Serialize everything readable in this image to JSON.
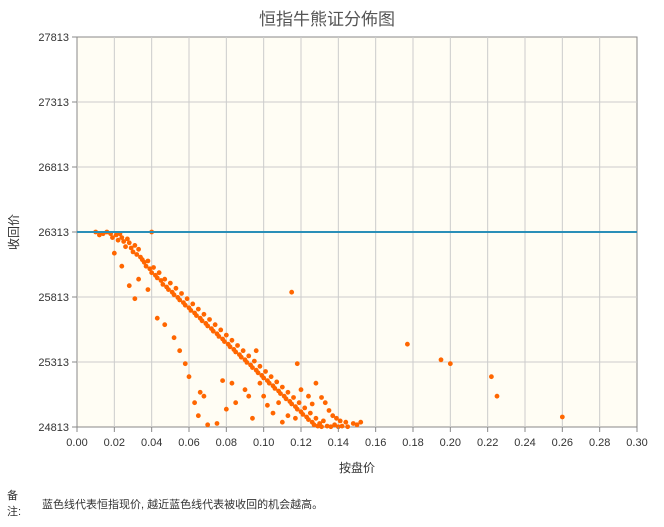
{
  "chart_data": {
    "type": "scatter",
    "title": "恒指牛熊证分佈图",
    "xlabel": "按盘价",
    "ylabel": "收回价",
    "xlim": [
      0,
      0.3
    ],
    "ylim": [
      24813,
      27813
    ],
    "xticks": [
      0,
      0.02,
      0.04,
      0.06,
      0.08,
      0.1,
      0.12,
      0.14,
      0.16,
      0.18,
      0.2,
      0.22,
      0.24,
      0.26,
      0.28,
      0.3
    ],
    "xtick_labels": [
      "0.00",
      "0.02",
      "0.04",
      "0.06",
      "0.08",
      "0.10",
      "0.12",
      "0.14",
      "0.16",
      "0.18",
      "0.20",
      "0.22",
      "0.24",
      "0.26",
      "0.28",
      "0.30"
    ],
    "yticks": [
      24813,
      25313,
      25813,
      26313,
      26813,
      27313,
      27813
    ],
    "ytick_labels": [
      "24813",
      "25313",
      "25813",
      "26313",
      "26813",
      "27313",
      "27813"
    ],
    "grid": true,
    "reference_line": {
      "y": 26313,
      "color": "#2a8fb8"
    },
    "point_color": "#ff6600",
    "points": [
      [
        0.01,
        26313
      ],
      [
        0.012,
        26290
      ],
      [
        0.014,
        26300
      ],
      [
        0.016,
        26313
      ],
      [
        0.018,
        26300
      ],
      [
        0.019,
        26270
      ],
      [
        0.021,
        26290
      ],
      [
        0.022,
        26250
      ],
      [
        0.023,
        26300
      ],
      [
        0.024,
        26270
      ],
      [
        0.025,
        26240
      ],
      [
        0.026,
        26200
      ],
      [
        0.027,
        26260
      ],
      [
        0.028,
        26230
      ],
      [
        0.029,
        26190
      ],
      [
        0.03,
        26160
      ],
      [
        0.031,
        26210
      ],
      [
        0.032,
        26140
      ],
      [
        0.033,
        26180
      ],
      [
        0.034,
        26120
      ],
      [
        0.035,
        26100
      ],
      [
        0.036,
        26080
      ],
      [
        0.037,
        26050
      ],
      [
        0.038,
        26090
      ],
      [
        0.039,
        26030
      ],
      [
        0.04,
        26313
      ],
      [
        0.04,
        26000
      ],
      [
        0.041,
        26040
      ],
      [
        0.042,
        25980
      ],
      [
        0.043,
        25960
      ],
      [
        0.044,
        26000
      ],
      [
        0.045,
        25940
      ],
      [
        0.046,
        25910
      ],
      [
        0.047,
        25950
      ],
      [
        0.048,
        25890
      ],
      [
        0.049,
        25870
      ],
      [
        0.05,
        25920
      ],
      [
        0.051,
        25850
      ],
      [
        0.052,
        25830
      ],
      [
        0.053,
        25880
      ],
      [
        0.054,
        25810
      ],
      [
        0.055,
        25790
      ],
      [
        0.056,
        25840
      ],
      [
        0.057,
        25770
      ],
      [
        0.058,
        25750
      ],
      [
        0.059,
        25800
      ],
      [
        0.06,
        25730
      ],
      [
        0.061,
        25710
      ],
      [
        0.062,
        25760
      ],
      [
        0.063,
        25690
      ],
      [
        0.064,
        25670
      ],
      [
        0.065,
        25720
      ],
      [
        0.066,
        25650
      ],
      [
        0.067,
        25630
      ],
      [
        0.068,
        25680
      ],
      [
        0.069,
        25610
      ],
      [
        0.07,
        25590
      ],
      [
        0.071,
        25640
      ],
      [
        0.072,
        25570
      ],
      [
        0.073,
        25550
      ],
      [
        0.074,
        25600
      ],
      [
        0.075,
        25530
      ],
      [
        0.076,
        25510
      ],
      [
        0.077,
        25560
      ],
      [
        0.078,
        25490
      ],
      [
        0.079,
        25470
      ],
      [
        0.08,
        25520
      ],
      [
        0.081,
        25450
      ],
      [
        0.082,
        25430
      ],
      [
        0.083,
        25480
      ],
      [
        0.084,
        25410
      ],
      [
        0.085,
        25390
      ],
      [
        0.086,
        25440
      ],
      [
        0.087,
        25370
      ],
      [
        0.088,
        25350
      ],
      [
        0.089,
        25400
      ],
      [
        0.09,
        25330
      ],
      [
        0.091,
        25310
      ],
      [
        0.092,
        25360
      ],
      [
        0.093,
        25290
      ],
      [
        0.094,
        25270
      ],
      [
        0.095,
        25320
      ],
      [
        0.096,
        25250
      ],
      [
        0.097,
        25230
      ],
      [
        0.098,
        25280
      ],
      [
        0.099,
        25210
      ],
      [
        0.1,
        25190
      ],
      [
        0.101,
        25240
      ],
      [
        0.102,
        25170
      ],
      [
        0.103,
        25150
      ],
      [
        0.104,
        25200
      ],
      [
        0.105,
        25130
      ],
      [
        0.106,
        25110
      ],
      [
        0.107,
        25160
      ],
      [
        0.108,
        25090
      ],
      [
        0.109,
        25070
      ],
      [
        0.11,
        25120
      ],
      [
        0.111,
        25050
      ],
      [
        0.112,
        25030
      ],
      [
        0.113,
        25080
      ],
      [
        0.114,
        25010
      ],
      [
        0.115,
        24990
      ],
      [
        0.116,
        25040
      ],
      [
        0.117,
        24970
      ],
      [
        0.118,
        24950
      ],
      [
        0.119,
        25000
      ],
      [
        0.12,
        24930
      ],
      [
        0.121,
        24910
      ],
      [
        0.122,
        24960
      ],
      [
        0.123,
        24890
      ],
      [
        0.124,
        24870
      ],
      [
        0.125,
        24920
      ],
      [
        0.126,
        24850
      ],
      [
        0.127,
        24830
      ],
      [
        0.128,
        24880
      ],
      [
        0.129,
        24820
      ],
      [
        0.13,
        24840
      ],
      [
        0.131,
        24815
      ],
      [
        0.132,
        24860
      ],
      [
        0.134,
        24820
      ],
      [
        0.136,
        24815
      ],
      [
        0.138,
        24830
      ],
      [
        0.14,
        24815
      ],
      [
        0.142,
        24820
      ],
      [
        0.145,
        24815
      ],
      [
        0.15,
        24830
      ],
      [
        0.152,
        24850
      ],
      [
        0.02,
        26150
      ],
      [
        0.024,
        26050
      ],
      [
        0.028,
        25900
      ],
      [
        0.031,
        25800
      ],
      [
        0.033,
        25950
      ],
      [
        0.038,
        25870
      ],
      [
        0.043,
        25650
      ],
      [
        0.047,
        25600
      ],
      [
        0.052,
        25500
      ],
      [
        0.055,
        25400
      ],
      [
        0.058,
        25300
      ],
      [
        0.06,
        25200
      ],
      [
        0.063,
        25000
      ],
      [
        0.065,
        24900
      ],
      [
        0.066,
        25080
      ],
      [
        0.068,
        25050
      ],
      [
        0.07,
        24830
      ],
      [
        0.075,
        24840
      ],
      [
        0.078,
        25170
      ],
      [
        0.08,
        24950
      ],
      [
        0.083,
        25150
      ],
      [
        0.085,
        25000
      ],
      [
        0.09,
        25100
      ],
      [
        0.092,
        25050
      ],
      [
        0.094,
        24880
      ],
      [
        0.096,
        25400
      ],
      [
        0.098,
        25150
      ],
      [
        0.1,
        25050
      ],
      [
        0.102,
        24980
      ],
      [
        0.105,
        24920
      ],
      [
        0.108,
        25000
      ],
      [
        0.11,
        24850
      ],
      [
        0.113,
        24900
      ],
      [
        0.115,
        25850
      ],
      [
        0.117,
        24880
      ],
      [
        0.118,
        25300
      ],
      [
        0.12,
        25100
      ],
      [
        0.124,
        25050
      ],
      [
        0.126,
        24990
      ],
      [
        0.128,
        25150
      ],
      [
        0.131,
        25040
      ],
      [
        0.133,
        25000
      ],
      [
        0.135,
        24940
      ],
      [
        0.137,
        24900
      ],
      [
        0.139,
        24880
      ],
      [
        0.141,
        24860
      ],
      [
        0.144,
        24850
      ],
      [
        0.148,
        24840
      ],
      [
        0.177,
        25450
      ],
      [
        0.195,
        25330
      ],
      [
        0.2,
        25300
      ],
      [
        0.222,
        25200
      ],
      [
        0.225,
        25050
      ],
      [
        0.26,
        24890
      ]
    ]
  },
  "note": {
    "head": "备注:",
    "text": "蓝色线代表恒指现价, 越近蓝色线代表被收回的机会越高。"
  }
}
